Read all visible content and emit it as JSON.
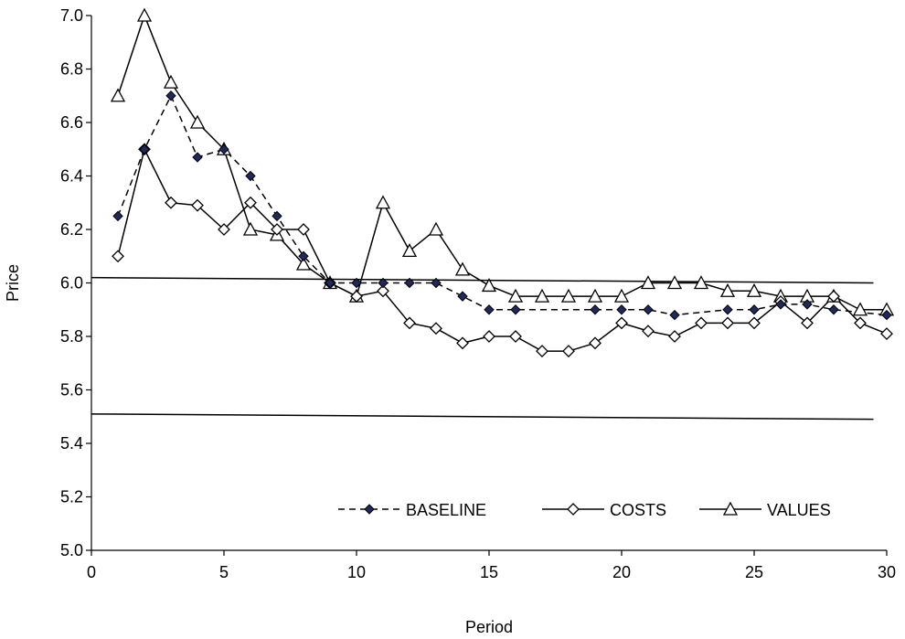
{
  "chart_data": {
    "type": "line",
    "title": "",
    "xlabel": "Period",
    "ylabel": "Price",
    "xlim": [
      0,
      30
    ],
    "ylim": [
      5.0,
      7.0
    ],
    "x_ticks": [
      0,
      5,
      10,
      15,
      20,
      25,
      30
    ],
    "y_ticks": [
      5.0,
      5.2,
      5.4,
      5.6,
      5.8,
      6.0,
      6.2,
      6.4,
      6.6,
      6.8,
      7.0
    ],
    "x_tick_labels": [
      "0",
      "5",
      "10",
      "15",
      "20",
      "25",
      "30"
    ],
    "y_tick_labels": [
      "5.0",
      "5.2",
      "5.4",
      "5.6",
      "5.8",
      "6.0",
      "6.2",
      "6.4",
      "6.6",
      "6.8",
      "7.0"
    ],
    "grid": false,
    "legend": "bottom-right",
    "x": [
      1,
      2,
      3,
      4,
      5,
      6,
      7,
      8,
      9,
      10,
      11,
      12,
      13,
      14,
      15,
      16,
      17,
      18,
      19,
      20,
      21,
      22,
      23,
      24,
      25,
      26,
      27,
      28,
      29,
      30
    ],
    "series": [
      {
        "name": "BASELINE",
        "marker": "filled-diamond",
        "line_style": "dashed",
        "color": "#000000",
        "marker_color": "#1f2a5c",
        "x": [
          1,
          2,
          3,
          4,
          5,
          6,
          7,
          8,
          9,
          10,
          11,
          12,
          13,
          14,
          15,
          16,
          19,
          20,
          21,
          22,
          24,
          25,
          26,
          27,
          28,
          30
        ],
        "values": [
          6.25,
          6.5,
          6.7,
          6.47,
          6.5,
          6.4,
          6.25,
          6.1,
          6.0,
          6.0,
          6.0,
          6.0,
          6.0,
          5.95,
          5.9,
          5.9,
          5.9,
          5.9,
          5.9,
          5.88,
          5.9,
          5.9,
          5.92,
          5.92,
          5.9,
          5.88
        ]
      },
      {
        "name": "COSTS",
        "marker": "open-diamond",
        "line_style": "solid",
        "color": "#000000",
        "values": [
          6.1,
          6.5,
          6.3,
          6.29,
          6.2,
          6.3,
          6.2,
          6.2,
          6.0,
          5.95,
          5.97,
          5.85,
          5.83,
          5.775,
          5.8,
          5.8,
          5.745,
          5.745,
          5.775,
          5.85,
          5.82,
          5.8,
          5.85,
          5.85,
          5.85,
          5.93,
          5.85,
          5.95,
          5.85,
          5.81
        ]
      },
      {
        "name": "VALUES",
        "marker": "open-triangle",
        "line_style": "solid",
        "color": "#000000",
        "values": [
          6.7,
          7.0,
          6.75,
          6.6,
          6.5,
          6.2,
          6.18,
          6.07,
          6.0,
          5.95,
          6.3,
          6.12,
          6.2,
          6.05,
          5.99,
          5.95,
          5.95,
          5.95,
          5.95,
          5.95,
          6.0,
          6.0,
          6.0,
          5.97,
          5.97,
          5.95,
          5.95,
          5.95,
          5.9,
          5.9
        ]
      }
    ],
    "reference_lines": [
      {
        "x": [
          0,
          29.5
        ],
        "y": [
          6.02,
          6.0
        ]
      },
      {
        "x": [
          0,
          29.5
        ],
        "y": [
          5.51,
          5.49
        ]
      }
    ]
  }
}
